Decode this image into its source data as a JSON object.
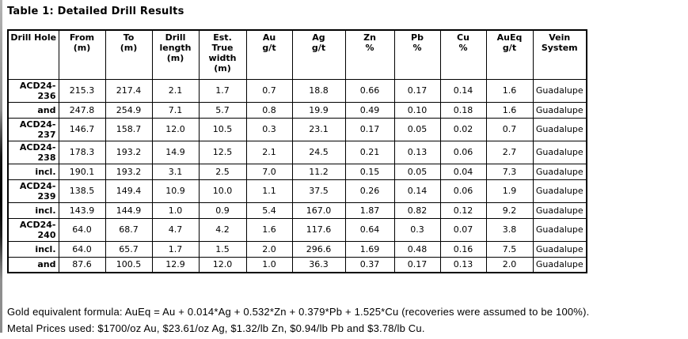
{
  "page": {
    "title": "Table 1: Detailed Drill Results"
  },
  "table": {
    "headers": [
      {
        "label": "Drill Hole"
      },
      {
        "label": "From\n(m)"
      },
      {
        "label": "To\n(m)"
      },
      {
        "label": "Drill\nlength\n(m)"
      },
      {
        "label": "Est.\nTrue\nwidth\n(m)"
      },
      {
        "label": "Au\ng/t"
      },
      {
        "label": "Ag\ng/t"
      },
      {
        "label": "Zn\n%"
      },
      {
        "label": "Pb\n%"
      },
      {
        "label": "Cu\n%"
      },
      {
        "label": "AuEq\ng/t"
      },
      {
        "label": "Vein\nSystem"
      }
    ],
    "rows": [
      {
        "hole": "ACD24-236",
        "from": "215.3",
        "to": "217.4",
        "length": "2.1",
        "width": "1.7",
        "au": "0.7",
        "ag": "18.8",
        "zn": "0.66",
        "pb": "0.17",
        "cu": "0.14",
        "aueq": "1.6",
        "vein": "Guadalupe"
      },
      {
        "hole": "and",
        "from": "247.8",
        "to": "254.9",
        "length": "7.1",
        "width": "5.7",
        "au": "0.8",
        "ag": "19.9",
        "zn": "0.49",
        "pb": "0.10",
        "cu": "0.18",
        "aueq": "1.6",
        "vein": "Guadalupe"
      },
      {
        "hole": "ACD24-237",
        "from": "146.7",
        "to": "158.7",
        "length": "12.0",
        "width": "10.5",
        "au": "0.3",
        "ag": "23.1",
        "zn": "0.17",
        "pb": "0.05",
        "cu": "0.02",
        "aueq": "0.7",
        "vein": "Guadalupe"
      },
      {
        "hole": "ACD24-238",
        "from": "178.3",
        "to": "193.2",
        "length": "14.9",
        "width": "12.5",
        "au": "2.1",
        "ag": "24.5",
        "zn": "0.21",
        "pb": "0.13",
        "cu": "0.06",
        "aueq": "2.7",
        "vein": "Guadalupe"
      },
      {
        "hole": "incl.",
        "from": "190.1",
        "to": "193.2",
        "length": "3.1",
        "width": "2.5",
        "au": "7.0",
        "ag": "11.2",
        "zn": "0.15",
        "pb": "0.05",
        "cu": "0.04",
        "aueq": "7.3",
        "vein": "Guadalupe"
      },
      {
        "hole": "ACD24-239",
        "from": "138.5",
        "to": "149.4",
        "length": "10.9",
        "width": "10.0",
        "au": "1.1",
        "ag": "37.5",
        "zn": "0.26",
        "pb": "0.14",
        "cu": "0.06",
        "aueq": "1.9",
        "vein": "Guadalupe"
      },
      {
        "hole": "incl.",
        "from": "143.9",
        "to": "144.9",
        "length": "1.0",
        "width": "0.9",
        "au": "5.4",
        "ag": "167.0",
        "zn": "1.87",
        "pb": "0.82",
        "cu": "0.12",
        "aueq": "9.2",
        "vein": "Guadalupe"
      },
      {
        "hole": "ACD24-240",
        "from": "64.0",
        "to": "68.7",
        "length": "4.7",
        "width": "4.2",
        "au": "1.6",
        "ag": "117.6",
        "zn": "0.64",
        "pb": "0.3",
        "cu": "0.07",
        "aueq": "3.8",
        "vein": "Guadalupe"
      },
      {
        "hole": "incl.",
        "from": "64.0",
        "to": "65.7",
        "length": "1.7",
        "width": "1.5",
        "au": "2.0",
        "ag": "296.6",
        "zn": "1.69",
        "pb": "0.48",
        "cu": "0.16",
        "aueq": "7.5",
        "vein": "Guadalupe"
      },
      {
        "hole": "and",
        "from": "87.6",
        "to": "100.5",
        "length": "12.9",
        "width": "12.0",
        "au": "1.0",
        "ag": "36.3",
        "zn": "0.37",
        "pb": "0.17",
        "cu": "0.13",
        "aueq": "2.0",
        "vein": "Guadalupe"
      }
    ]
  },
  "footnotes": {
    "formula": "Gold equivalent formula: AuEq = Au + 0.014*Ag + 0.532*Zn + 0.379*Pb + 1.525*Cu (recoveries were assumed to be 100%).",
    "prices": "Metal Prices used: $1700/oz Au, $23.61/oz Ag, $1.32/lb Zn, $0.94/lb Pb and $3.78/lb Cu."
  }
}
